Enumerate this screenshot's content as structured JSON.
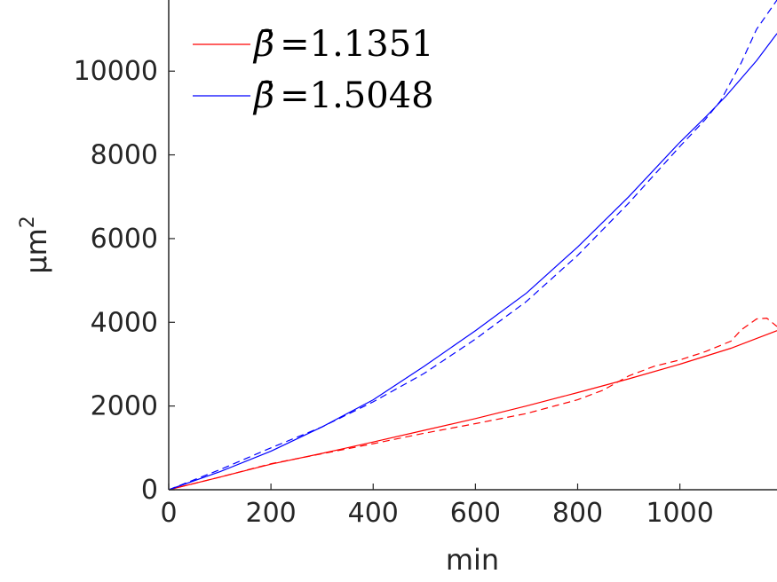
{
  "chart_data": {
    "type": "line",
    "title": "",
    "xlabel": "min",
    "ylabel_base": "μm",
    "ylabel_sup": "2",
    "xlim": [
      0,
      1190
    ],
    "ylim": [
      0,
      11700
    ],
    "xticks": [
      0,
      200,
      400,
      600,
      800,
      1000
    ],
    "yticks": [
      0,
      2000,
      4000,
      6000,
      8000,
      10000
    ],
    "xtick_labels": [
      "0",
      "200",
      "400",
      "600",
      "800",
      "1000"
    ],
    "ytick_labels": [
      "0",
      "2000",
      "4000",
      "6000",
      "8000",
      "10000"
    ],
    "grid": false,
    "legend_position": "top-left",
    "legend": [
      {
        "symbol": "β̄",
        "text": "=1.1351",
        "color": "#ff0000"
      },
      {
        "symbol": "β̄",
        "text": "=1.5048",
        "color": "#0000ff"
      }
    ],
    "series": [
      {
        "style": "solid",
        "color": "#ff0000",
        "x": [
          0,
          100,
          200,
          300,
          400,
          500,
          600,
          700,
          800,
          900,
          1000,
          1100,
          1190
        ],
        "y": [
          0,
          300,
          610,
          870,
          1140,
          1420,
          1700,
          2000,
          2320,
          2650,
          3000,
          3380,
          3800
        ]
      },
      {
        "style": "dashed",
        "color": "#ff0000",
        "x": [
          0,
          100,
          200,
          300,
          400,
          500,
          600,
          700,
          800,
          850,
          900,
          950,
          1000,
          1050,
          1100,
          1120,
          1150,
          1170,
          1190
        ],
        "y": [
          0,
          300,
          620,
          860,
          1100,
          1350,
          1580,
          1820,
          2150,
          2380,
          2720,
          2950,
          3100,
          3300,
          3550,
          3820,
          4080,
          4100,
          3900
        ]
      },
      {
        "style": "solid",
        "color": "#0000ff",
        "x": [
          0,
          100,
          200,
          300,
          400,
          500,
          600,
          700,
          800,
          900,
          1000,
          1050,
          1090,
          1150,
          1190
        ],
        "y": [
          0,
          430,
          920,
          1500,
          2150,
          2950,
          3800,
          4700,
          5800,
          7000,
          8300,
          8900,
          9400,
          10250,
          10900
        ]
      },
      {
        "style": "dashed",
        "color": "#0000ff",
        "x": [
          0,
          100,
          200,
          300,
          400,
          500,
          600,
          700,
          800,
          900,
          1000,
          1050,
          1080,
          1120,
          1150,
          1190
        ],
        "y": [
          0,
          480,
          1000,
          1500,
          2100,
          2780,
          3600,
          4500,
          5600,
          6850,
          8200,
          8850,
          9300,
          10200,
          11000,
          11700
        ]
      }
    ]
  }
}
